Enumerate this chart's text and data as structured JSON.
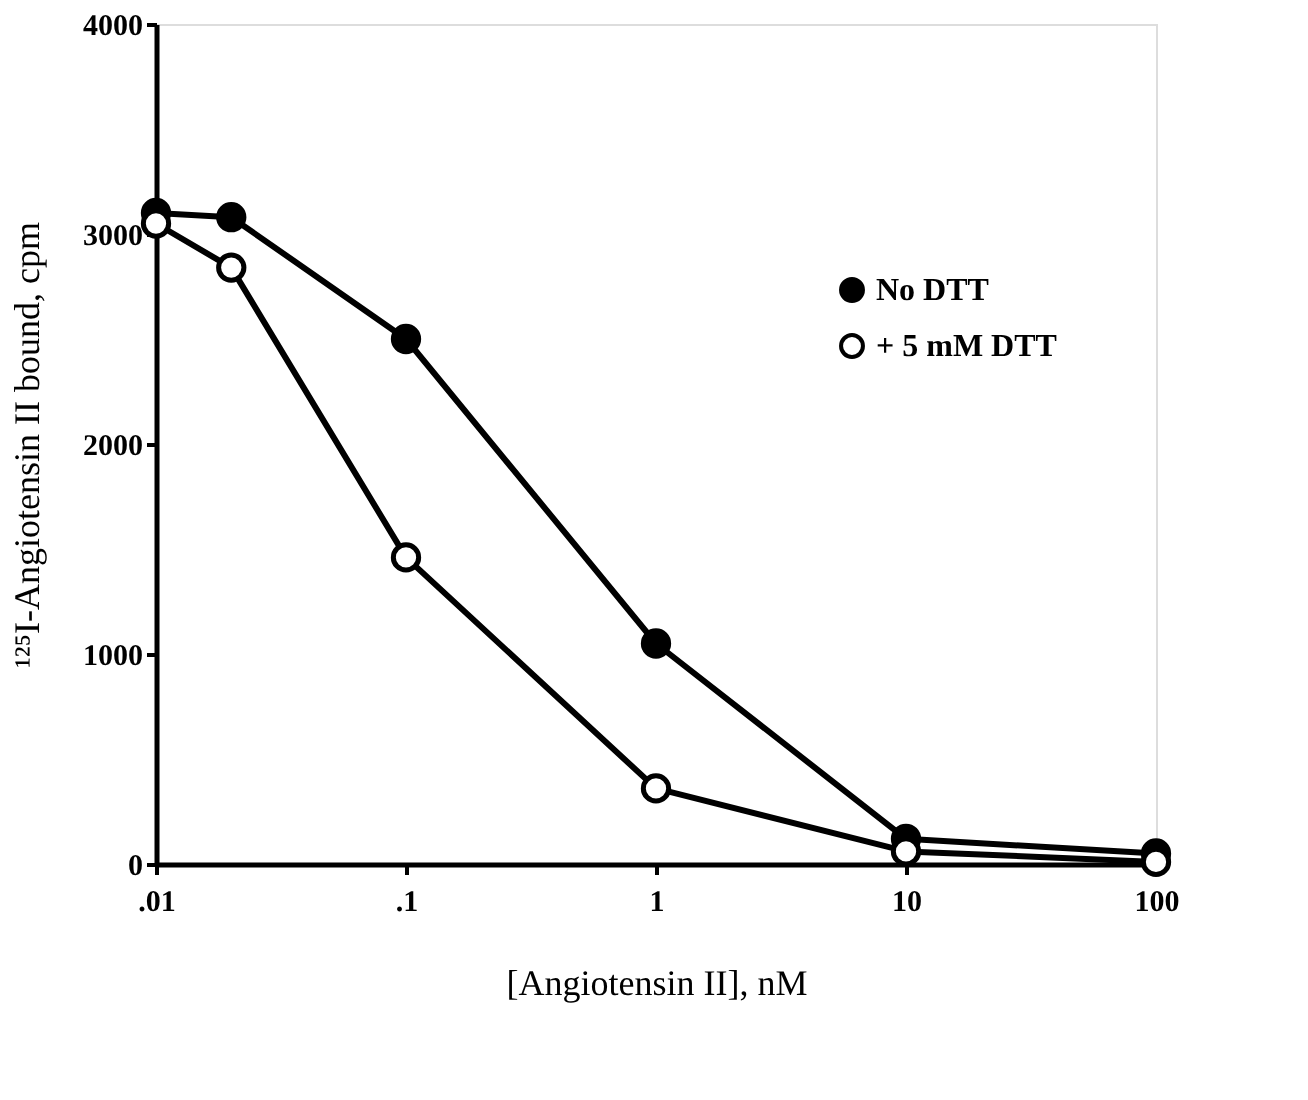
{
  "chart_data": {
    "type": "line",
    "xlabel": "[Angiotensin II], nM",
    "ylabel": "¹²⁵I-Angiotensin II bound, cpm",
    "x": [
      0.01,
      0.02,
      0.1,
      1,
      10,
      100
    ],
    "log": "x",
    "xlim": [
      0.01,
      100
    ],
    "xticks": [
      {
        "value": 0.01,
        "label": ".01"
      },
      {
        "value": 0.1,
        "label": ".1"
      },
      1,
      10,
      100
    ],
    "ylim": [
      0,
      4000
    ],
    "yticks": [
      0,
      1000,
      2000,
      3000,
      4000
    ],
    "grid": false,
    "legend": "top right",
    "marker": "circle",
    "line_style": "solid",
    "series": [
      {
        "name": "No DTT",
        "color": "#000000",
        "values": [
          3100,
          3080,
          2500,
          1050,
          120,
          50
        ]
      },
      {
        "name": "+ 5 mM DTT",
        "color": "#000000",
        "values": [
          3050,
          2840,
          1460,
          360,
          60,
          10
        ]
      }
    ]
  }
}
